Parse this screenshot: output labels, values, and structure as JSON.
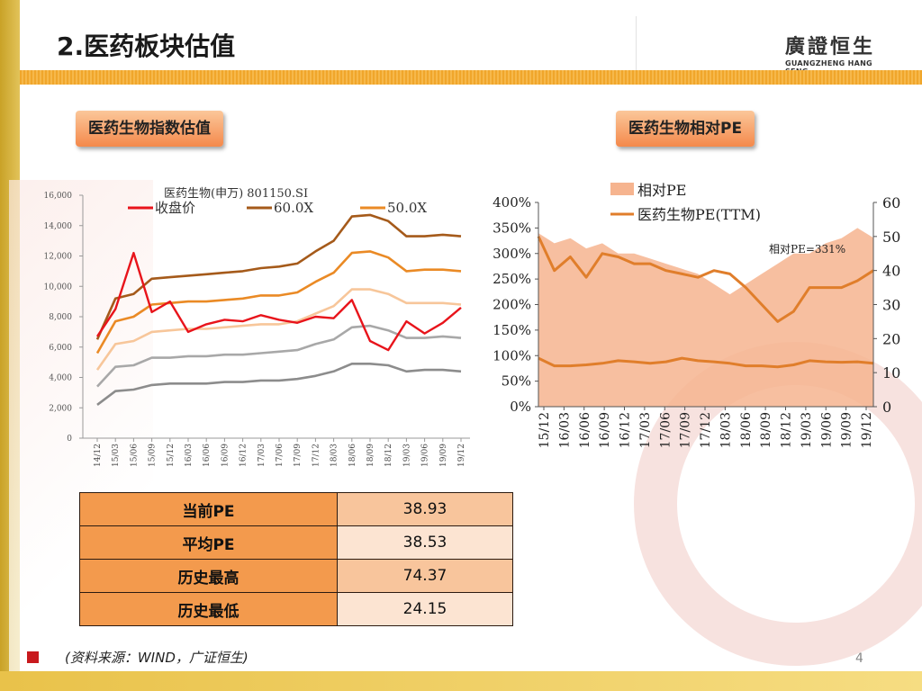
{
  "slide": {
    "title": "2.医药板块估值",
    "logo_cn": "廣證恒生",
    "logo_en": "GUANGZHENG HANG SENG",
    "page_number": "4",
    "source": "(资料来源：WIND，广证恒生)"
  },
  "badges": {
    "left": "医药生物指数估值",
    "right": "医药生物相对PE"
  },
  "table": {
    "rows": [
      {
        "label": "当前PE",
        "value": "38.93"
      },
      {
        "label": "平均PE",
        "value": "38.53"
      },
      {
        "label": "历史最高",
        "value": "74.37"
      },
      {
        "label": "历史最低",
        "value": "24.15"
      }
    ]
  },
  "colors": {
    "close": "#e8141b",
    "band60": "#a55a1a",
    "band50": "#ea8a25",
    "band40": "#f7c69a",
    "band30": "#a8a8a8",
    "band20": "#8c8c8c",
    "relpe_area": "#f6b48f",
    "pe_ttm": "#e07e2b"
  },
  "chart_data": [
    {
      "type": "line",
      "title": "医药生物(申万) 801150.SI",
      "ylim": [
        0,
        16000
      ],
      "y_ticks": [
        "0",
        "2,000",
        "4,000",
        "6,000",
        "8,000",
        "10,000",
        "12,000",
        "14,000",
        "16,000"
      ],
      "x_ticks": [
        "14/12",
        "15/03",
        "15/06",
        "15/09",
        "15/12",
        "16/03",
        "16/06",
        "16/09",
        "16/12",
        "17/03",
        "17/06",
        "17/09",
        "17/12",
        "18/03",
        "18/06",
        "18/09",
        "18/12",
        "19/03",
        "19/06",
        "19/09",
        "19/12"
      ],
      "legend": [
        "收盘价",
        "60.0X",
        "50.0X"
      ],
      "series": [
        {
          "name": "60.0X",
          "values": [
            6500,
            9200,
            9500,
            10500,
            10600,
            10700,
            10800,
            10900,
            11000,
            11200,
            11300,
            11500,
            12300,
            13000,
            14600,
            14700,
            14300,
            13300,
            13300,
            13400,
            13300
          ]
        },
        {
          "name": "50.0X",
          "values": [
            5600,
            7700,
            8000,
            8800,
            8900,
            9000,
            9000,
            9100,
            9200,
            9400,
            9400,
            9600,
            10300,
            10900,
            12200,
            12300,
            11900,
            11000,
            11100,
            11100,
            11000
          ]
        },
        {
          "values": [
            4500,
            6200,
            6400,
            7000,
            7100,
            7200,
            7200,
            7300,
            7400,
            7500,
            7500,
            7700,
            8200,
            8700,
            9800,
            9800,
            9500,
            8900,
            8900,
            8900,
            8800
          ]
        },
        {
          "values": [
            3400,
            4700,
            4800,
            5300,
            5300,
            5400,
            5400,
            5500,
            5500,
            5600,
            5700,
            5800,
            6200,
            6500,
            7300,
            7400,
            7100,
            6600,
            6600,
            6700,
            6600
          ]
        },
        {
          "values": [
            2200,
            3100,
            3200,
            3500,
            3600,
            3600,
            3600,
            3700,
            3700,
            3800,
            3800,
            3900,
            4100,
            4400,
            4900,
            4900,
            4800,
            4400,
            4500,
            4500,
            4400
          ]
        },
        {
          "name": "收盘价",
          "values": [
            6700,
            8500,
            12200,
            8300,
            9000,
            7000,
            7500,
            7800,
            7700,
            8100,
            7800,
            7600,
            8000,
            7900,
            9100,
            6400,
            5800,
            7700,
            6900,
            7600,
            8600
          ]
        }
      ]
    },
    {
      "type": "area",
      "x_ticks": [
        "15/12",
        "16/03",
        "16/06",
        "16/09",
        "16/12",
        "17/03",
        "17/06",
        "17/09",
        "17/12",
        "18/03",
        "18/06",
        "18/09",
        "18/12",
        "19/03",
        "19/06",
        "19/09",
        "19/12"
      ],
      "y_left_ticks": [
        "0%",
        "50%",
        "100%",
        "150%",
        "200%",
        "250%",
        "300%",
        "350%",
        "400%"
      ],
      "y_left_lim": [
        0,
        400
      ],
      "y_right_ticks": [
        "0",
        "10",
        "20",
        "30",
        "40",
        "50",
        "60"
      ],
      "y_right_lim": [
        0,
        60
      ],
      "annotation": "相对PE=331%",
      "series": [
        {
          "name": "相对PE",
          "axis": "left",
          "values": [
            340,
            320,
            330,
            310,
            320,
            300,
            300,
            290,
            280,
            270,
            260,
            240,
            220,
            240,
            260,
            280,
            300,
            300,
            320,
            330,
            350,
            331
          ]
        },
        {
          "name": "医药生物PE(TTM)",
          "axis": "right",
          "values": [
            50,
            40,
            44,
            38,
            45,
            44,
            42,
            42,
            40,
            39,
            38,
            40,
            39,
            35,
            30,
            25,
            28,
            35,
            35,
            35,
            37,
            40
          ]
        },
        {
          "name": "",
          "axis": "left",
          "values": [
            95,
            80,
            80,
            82,
            85,
            90,
            88,
            85,
            88,
            95,
            90,
            88,
            85,
            80,
            80,
            78,
            82,
            90,
            88,
            87,
            88,
            85
          ]
        }
      ]
    }
  ]
}
